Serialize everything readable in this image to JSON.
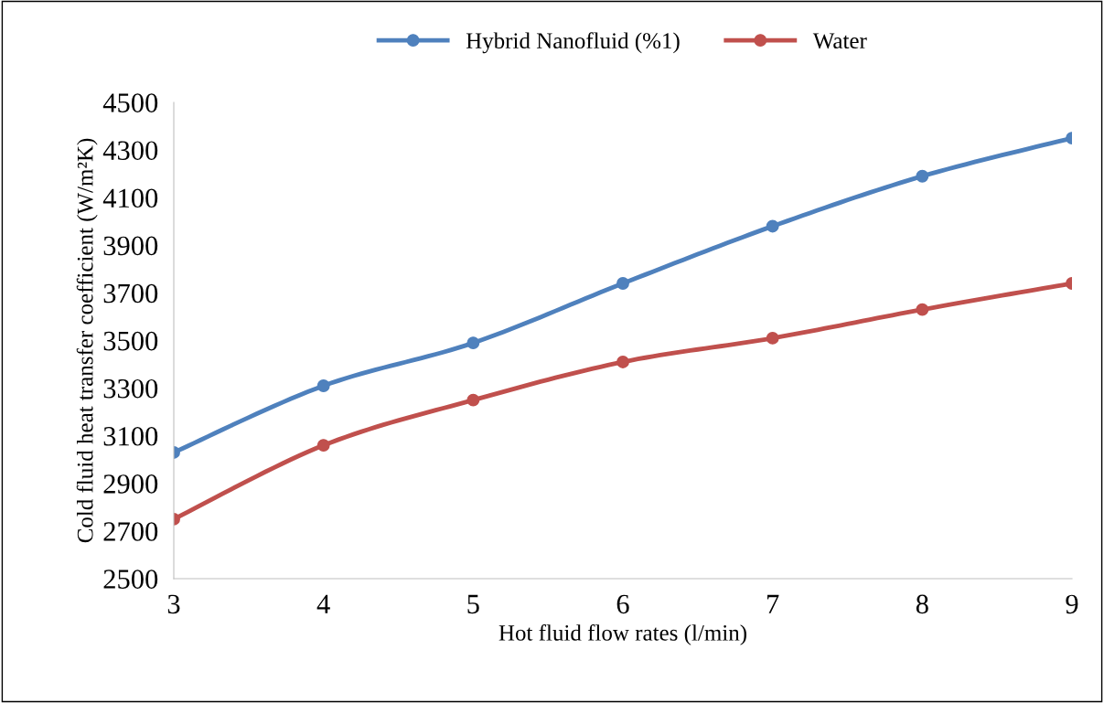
{
  "chart_data": {
    "type": "line",
    "xlabel": "Hot fluid flow rates (l/min)",
    "ylabel": "Cold fluid heat transfer coefficient (W/m²K)",
    "x": [
      3,
      4,
      5,
      6,
      7,
      8,
      9
    ],
    "series": [
      {
        "name": "Hybrid Nanofluid (%1)",
        "color": "#4f81bd",
        "values": [
          3030,
          3310,
          3490,
          3740,
          3980,
          4190,
          4350
        ]
      },
      {
        "name": "Water",
        "color": "#c0504d",
        "values": [
          2750,
          3060,
          3250,
          3410,
          3510,
          3630,
          3740
        ]
      }
    ],
    "xlim": [
      3,
      9
    ],
    "xticks": [
      3,
      4,
      5,
      6,
      7,
      8,
      9
    ],
    "ylim": [
      2500,
      4500
    ],
    "yticks": [
      2500,
      2700,
      2900,
      3100,
      3300,
      3500,
      3700,
      3900,
      4100,
      4300,
      4500
    ],
    "grid": false,
    "legend": "top",
    "marker": "circle",
    "line_style": "solid"
  }
}
